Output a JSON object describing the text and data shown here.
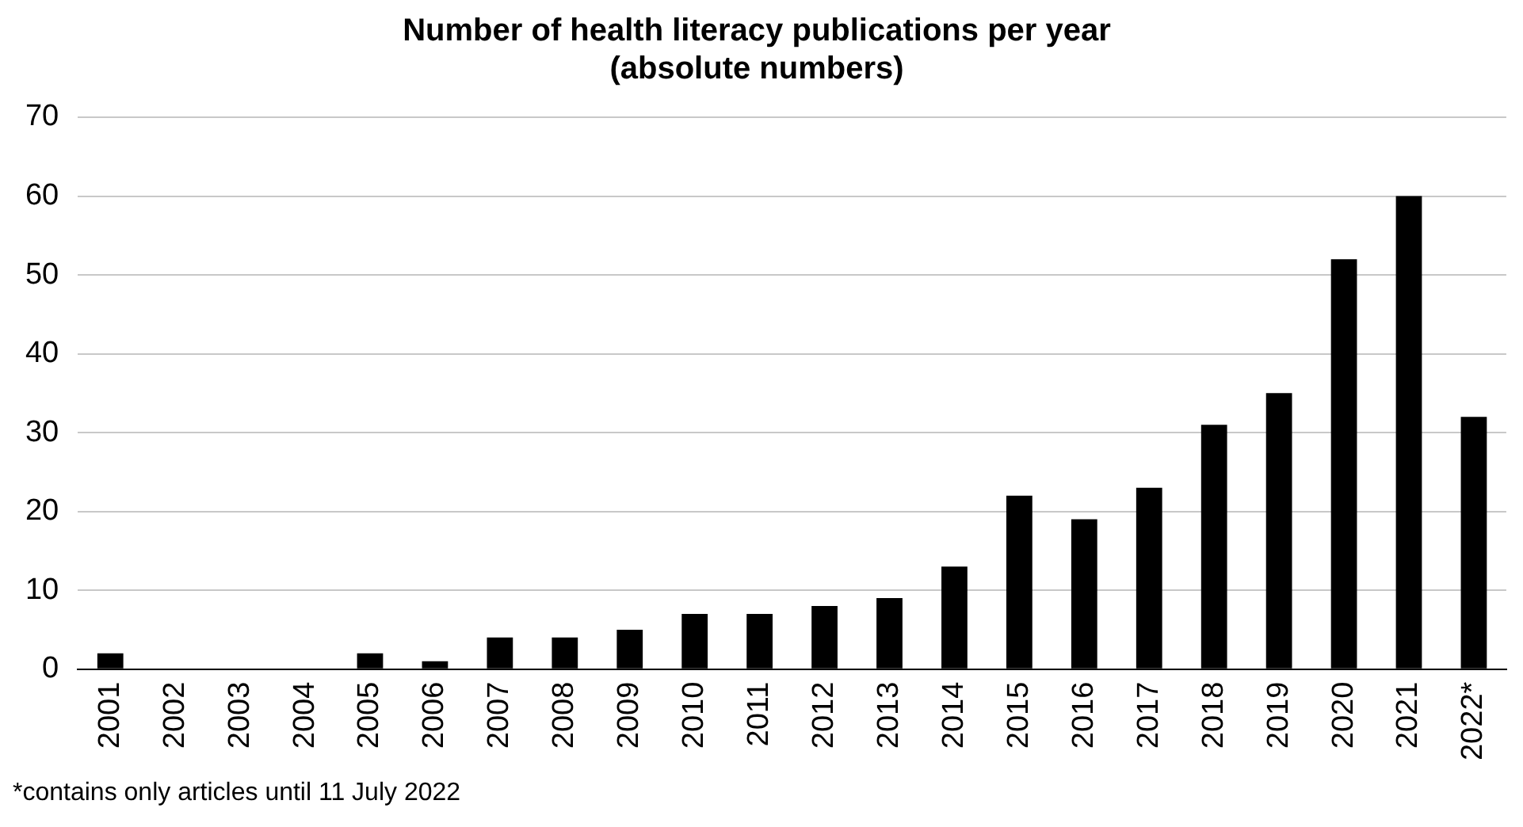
{
  "chart_data": {
    "type": "bar",
    "title": "Number of health literacy publications per year\n(absolute numbers)",
    "categories": [
      "2001",
      "2002",
      "2003",
      "2004",
      "2005",
      "2006",
      "2007",
      "2008",
      "2009",
      "2010",
      "2011",
      "2012",
      "2013",
      "2014",
      "2015",
      "2016",
      "2017",
      "2018",
      "2019",
      "2020",
      "2021",
      "2022*"
    ],
    "values": [
      2,
      0,
      0,
      0,
      2,
      1,
      4,
      4,
      5,
      7,
      7,
      8,
      9,
      13,
      22,
      19,
      23,
      31,
      35,
      52,
      60,
      32
    ],
    "color": "#000000",
    "ylim": [
      0,
      70
    ],
    "yticks": [
      0,
      10,
      20,
      30,
      40,
      50,
      60,
      70
    ],
    "grid": "y",
    "legend": false,
    "annotations": [
      "*contains only articles until 11 July 2022"
    ]
  }
}
